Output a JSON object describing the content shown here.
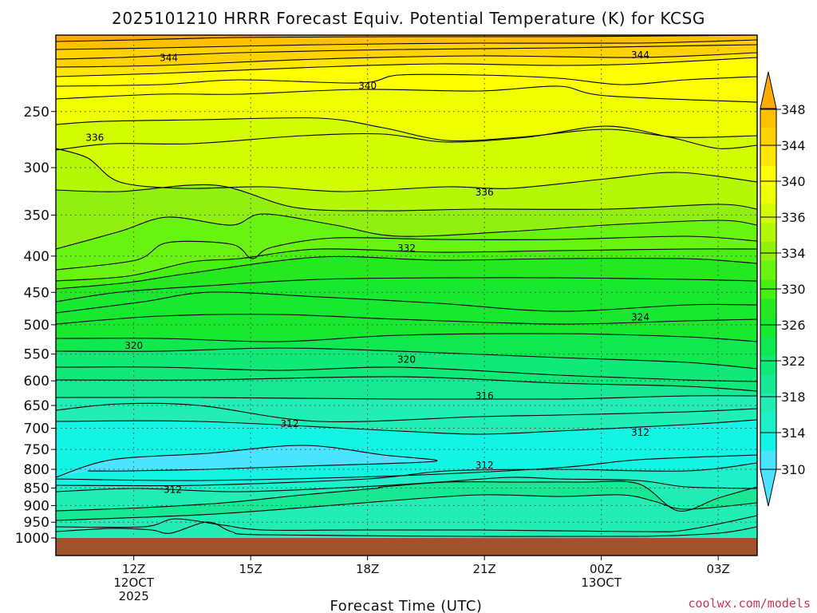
{
  "title": "2025101210 HRRR Forecast Equiv. Potential Temperature (K) for KCSG",
  "watermark": "coolwx.com/models",
  "chart_data": {
    "type": "heatmap",
    "title": "2025101210 HRRR Forecast Equiv. Potential Temperature (K) for KCSG",
    "xlabel": "Forecast Time (UTC)",
    "ylabel": "",
    "y_scale": "log (pressure, hPa)",
    "y_reversed": true,
    "ylim": [
      1000,
      195
    ],
    "y_ticks": [
      250,
      300,
      350,
      400,
      450,
      500,
      550,
      600,
      650,
      700,
      750,
      800,
      850,
      900,
      950,
      1000
    ],
    "x_range_utc_hours": [
      10,
      28
    ],
    "x_ticks": [
      {
        "hour": 12,
        "lines": [
          "12Z",
          "12OCT",
          "2025"
        ]
      },
      {
        "hour": 15,
        "lines": [
          "15Z"
        ]
      },
      {
        "hour": 18,
        "lines": [
          "18Z"
        ]
      },
      {
        "hour": 21,
        "lines": [
          "21Z"
        ]
      },
      {
        "hour": 24,
        "lines": [
          "00Z",
          "13OCT"
        ]
      },
      {
        "hour": 27,
        "lines": [
          "03Z"
        ]
      }
    ],
    "grid": "dotted gridlines at each pressure tick and forecast hour tick",
    "colorbar": {
      "levels": [
        310,
        312,
        314,
        316,
        318,
        320,
        322,
        324,
        326,
        328,
        330,
        332,
        334,
        336,
        338,
        340,
        342,
        344,
        346,
        348
      ],
      "labels": [
        310,
        314,
        318,
        322,
        326,
        330,
        334,
        336,
        340,
        344,
        348
      ],
      "extend": "both"
    },
    "colors": {
      "ground": "#a0522d",
      "c310": "#4be4ff",
      "c312": "#14f4e4",
      "c314": "#1ef0ca",
      "c316": "#22edb4",
      "c318": "#18e894",
      "c320": "#10e878",
      "c322": "#10e850",
      "c324": "#18e830",
      "c326": "#26e820",
      "c328": "#46f010",
      "c330": "#68f410",
      "c332": "#92f010",
      "c334": "#b4f808",
      "c336": "#d2fc00",
      "c338": "#eeff00",
      "c340": "#ffff00",
      "c342": "#ffe600",
      "c344": "#ffd200",
      "c346": "#ffc000",
      "c348": "#ffaa00"
    },
    "contour_interval_K": 2,
    "labeled_contours": [
      {
        "value": 344,
        "label": "344",
        "time_hour": 12.9,
        "pressure": 210
      },
      {
        "value": 344,
        "label": "344",
        "time_hour": 25.0,
        "pressure": 208
      },
      {
        "value": 340,
        "label": "340",
        "time_hour": 18.0,
        "pressure": 230
      },
      {
        "value": 336,
        "label": "336",
        "time_hour": 11.0,
        "pressure": 272
      },
      {
        "value": 336,
        "label": "336",
        "time_hour": 21.0,
        "pressure": 325
      },
      {
        "value": 332,
        "label": "332",
        "time_hour": 19.0,
        "pressure": 390
      },
      {
        "value": 324,
        "label": "324",
        "time_hour": 25.0,
        "pressure": 488
      },
      {
        "value": 320,
        "label": "320",
        "time_hour": 12.0,
        "pressure": 535
      },
      {
        "value": 320,
        "label": "320",
        "time_hour": 19.0,
        "pressure": 560
      },
      {
        "value": 316,
        "label": "316",
        "time_hour": 21.0,
        "pressure": 630
      },
      {
        "value": 312,
        "label": "312",
        "time_hour": 16.0,
        "pressure": 690
      },
      {
        "value": 312,
        "label": "312",
        "time_hour": 25.0,
        "pressure": 710
      },
      {
        "value": 312,
        "label": "312",
        "time_hour": 21.0,
        "pressure": 790
      },
      {
        "value": 312,
        "label": "312",
        "time_hour": 13.0,
        "pressure": 855
      }
    ]
  }
}
